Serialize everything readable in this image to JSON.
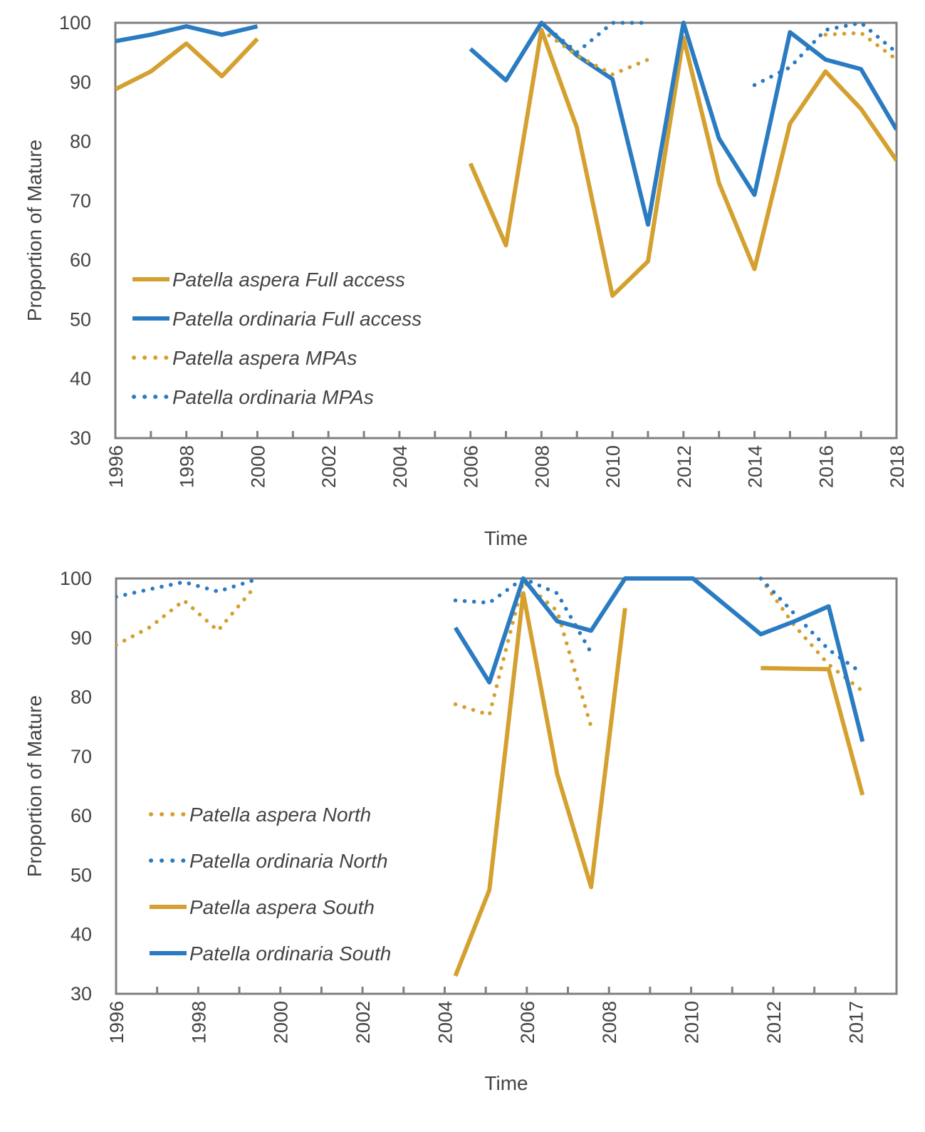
{
  "colors": {
    "aspera": "#D4A030",
    "ordinaria": "#2A7BC1",
    "axis": "#7f7f7f",
    "text": "#444444"
  },
  "chart_data": [
    {
      "type": "line",
      "xlabel": "Time",
      "ylabel": "Proportion of Mature",
      "ylim": [
        30,
        100
      ],
      "xlim": [
        1996,
        2018
      ],
      "yticks": [
        30,
        40,
        50,
        60,
        70,
        80,
        90,
        100
      ],
      "xtick_labels": [
        "1996",
        "1998",
        "2000",
        "2002",
        "2004",
        "2006",
        "2008",
        "2010",
        "2012",
        "2014",
        "2016",
        "2018"
      ],
      "legend_position": "bottom-left inside",
      "grid": false,
      "series": [
        {
          "name": "Patella aspera Full access",
          "color": "aspera",
          "style": "solid",
          "segments": [
            [
              [
                1996,
                88.8
              ],
              [
                1997,
                91.8
              ],
              [
                1998,
                96.5
              ],
              [
                1999,
                91.0
              ],
              [
                2000,
                97.3
              ]
            ],
            [
              [
                2006,
                76.3
              ],
              [
                2007,
                62.5
              ],
              [
                2008,
                98.8
              ],
              [
                2009,
                82.3
              ],
              [
                2010,
                54.0
              ],
              [
                2011,
                59.8
              ],
              [
                2012,
                97.5
              ],
              [
                2013,
                73.0
              ],
              [
                2014,
                58.5
              ],
              [
                2015,
                83.0
              ],
              [
                2016,
                91.8
              ],
              [
                2017,
                85.5
              ],
              [
                2018,
                76.8
              ]
            ]
          ]
        },
        {
          "name": "Patella ordinaria Full access",
          "color": "ordinaria",
          "style": "solid",
          "segments": [
            [
              [
                1996,
                96.9
              ],
              [
                1997,
                98.0
              ],
              [
                1998,
                99.4
              ],
              [
                1999,
                98.0
              ],
              [
                2000,
                99.4
              ]
            ],
            [
              [
                2006,
                95.6
              ],
              [
                2007,
                90.3
              ],
              [
                2008,
                100.0
              ],
              [
                2009,
                94.5
              ],
              [
                2010,
                90.5
              ],
              [
                2011,
                66.0
              ],
              [
                2012,
                100.0
              ],
              [
                2013,
                80.5
              ],
              [
                2014,
                71.0
              ],
              [
                2015,
                98.4
              ],
              [
                2016,
                93.8
              ],
              [
                2017,
                92.2
              ],
              [
                2018,
                82.0
              ]
            ]
          ]
        },
        {
          "name": "Patella aspera MPAs",
          "color": "aspera",
          "style": "dotted",
          "segments": [
            [
              [
                2008,
                98.8
              ],
              [
                2009,
                94.5
              ],
              [
                2010,
                91.3
              ],
              [
                2011,
                93.8
              ]
            ],
            [
              [
                2016,
                98.0
              ],
              [
                2017,
                98.3
              ],
              [
                2018,
                93.8
              ]
            ]
          ]
        },
        {
          "name": "Patella ordinaria MPAs",
          "color": "ordinaria",
          "style": "dotted",
          "segments": [
            [
              [
                2008,
                100.0
              ],
              [
                2009,
                95.0
              ],
              [
                2010,
                100.0
              ],
              [
                2011,
                100.0
              ]
            ],
            [
              [
                2014,
                89.5
              ],
              [
                2015,
                92.5
              ],
              [
                2016,
                98.8
              ],
              [
                2017,
                100.0
              ],
              [
                2018,
                95.0
              ]
            ]
          ]
        }
      ]
    },
    {
      "type": "line",
      "xlabel": "Time",
      "ylabel": "Proportion of Mature",
      "ylim": [
        30,
        100
      ],
      "xlim": [
        1996,
        2019
      ],
      "yticks": [
        30,
        40,
        50,
        60,
        70,
        80,
        90,
        100
      ],
      "xtick_labels": [
        "1996",
        "1998",
        "2000",
        "2002",
        "2004",
        "2006",
        "2008",
        "2010",
        "2012",
        "2017"
      ],
      "legend_position": "bottom-left inside",
      "grid": false,
      "series": [
        {
          "name": "Patella aspera North",
          "color": "aspera",
          "style": "dotted",
          "segments": [
            [
              [
                1996,
                88.8
              ],
              [
                1997,
                91.8
              ],
              [
                1998,
                96.3
              ],
              [
                1999,
                91.2
              ],
              [
                2000,
                98.0
              ]
            ],
            [
              [
                2006,
                78.8
              ],
              [
                2007,
                77.0
              ],
              [
                2008,
                99.5
              ],
              [
                2009,
                94.5
              ],
              [
                2010,
                75.0
              ]
            ],
            [
              [
                2015,
                100.0
              ],
              [
                2016,
                92.0
              ],
              [
                2017,
                85.5
              ],
              [
                2018,
                81.0
              ]
            ]
          ]
        },
        {
          "name": "Patella ordinaria North",
          "color": "ordinaria",
          "style": "dotted",
          "segments": [
            [
              [
                1996,
                96.9
              ],
              [
                1997,
                98.2
              ],
              [
                1998,
                99.4
              ],
              [
                1999,
                97.8
              ],
              [
                2000,
                99.6
              ]
            ],
            [
              [
                2006,
                96.3
              ],
              [
                2007,
                95.9
              ],
              [
                2008,
                100.0
              ],
              [
                2009,
                97.5
              ],
              [
                2010,
                87.5
              ]
            ],
            [
              [
                2015,
                100.0
              ],
              [
                2016,
                94.0
              ],
              [
                2017,
                88.0
              ],
              [
                2018,
                84.0
              ]
            ]
          ]
        },
        {
          "name": "Patella aspera South",
          "color": "aspera",
          "style": "solid",
          "segments": [
            [
              [
                2006,
                33.0
              ],
              [
                2007,
                47.5
              ],
              [
                2008,
                97.5
              ],
              [
                2009,
                67.0
              ],
              [
                2010,
                48.0
              ],
              [
                2011,
                95.0
              ]
            ],
            [
              [
                2015,
                84.9
              ],
              [
                2016,
                84.8
              ],
              [
                2017,
                84.7
              ],
              [
                2018,
                63.5
              ]
            ]
          ]
        },
        {
          "name": "Patella ordinaria South",
          "color": "ordinaria",
          "style": "solid",
          "segments": [
            [
              [
                2006,
                91.7
              ],
              [
                2007,
                82.5
              ],
              [
                2008,
                100.0
              ],
              [
                2009,
                92.8
              ],
              [
                2010,
                91.2
              ],
              [
                2011,
                100.0
              ],
              [
                2012,
                100.0
              ],
              [
                2013,
                100.0
              ],
              [
                2015,
                90.6
              ],
              [
                2016,
                92.8
              ],
              [
                2017,
                95.3
              ],
              [
                2018,
                72.5
              ]
            ]
          ]
        }
      ]
    }
  ]
}
